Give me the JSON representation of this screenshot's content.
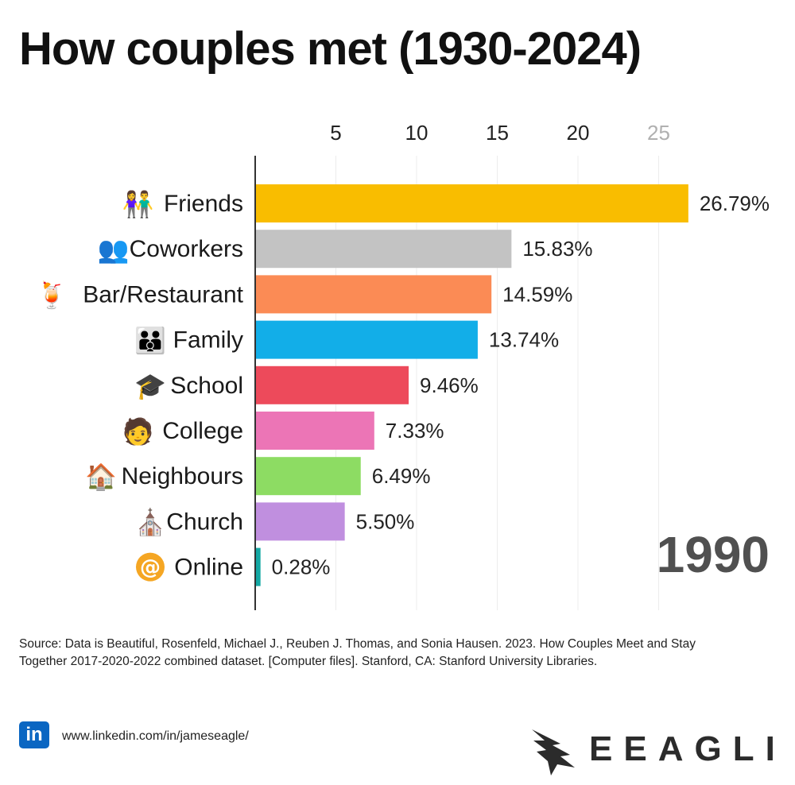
{
  "title": "How couples met (1930-2024)",
  "chart_data": {
    "type": "bar",
    "orientation": "horizontal",
    "categories": [
      "Friends",
      "Coworkers",
      "Bar/Restaurant",
      "Family",
      "School",
      "College",
      "Neighbours",
      "Church",
      "Online"
    ],
    "values": [
      26.79,
      15.83,
      14.59,
      13.74,
      9.46,
      7.33,
      6.49,
      5.5,
      0.28
    ],
    "value_labels": [
      "26.79%",
      "15.83%",
      "14.59%",
      "13.74%",
      "9.46%",
      "7.33%",
      "6.49%",
      "5.50%",
      "0.28%"
    ],
    "colors": [
      "#f9bd00",
      "#c3c3c3",
      "#fb8b55",
      "#12aee8",
      "#ed4a5b",
      "#ec75b6",
      "#8ddc63",
      "#c08fdf",
      "#14a8a4"
    ],
    "icons": [
      "friends-icon",
      "coworkers-icon",
      "cocktail-icon",
      "family-icon",
      "graduation-cap-icon",
      "graduate-icon",
      "house-icon",
      "church-icon",
      "at-sign-icon"
    ],
    "xticks": [
      5,
      10,
      15,
      20,
      25
    ],
    "xtick_labels": [
      "5",
      "10",
      "15",
      "20",
      "25"
    ],
    "xlim": [
      0,
      27
    ],
    "grid": true,
    "year": "1990"
  },
  "source": "Source: Data is Beautiful, Rosenfeld, Michael J., Reuben J. Thomas, and Sonia Hausen. 2023. How Couples Meet and Stay Together 2017-2020-2022 combined dataset. [Computer files]. Stanford, CA: Stanford University Libraries.",
  "linkedin": {
    "badge": "in",
    "url": "www.linkedin.com/in/jameseagle/"
  },
  "brand": "EEAGLI"
}
